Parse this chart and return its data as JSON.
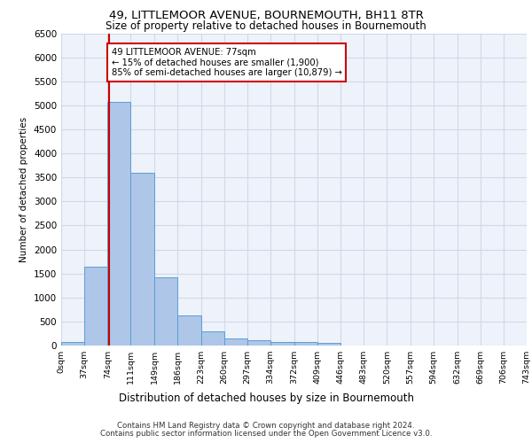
{
  "title_line1": "49, LITTLEMOOR AVENUE, BOURNEMOUTH, BH11 8TR",
  "title_line2": "Size of property relative to detached houses in Bournemouth",
  "xlabel": "Distribution of detached houses by size in Bournemouth",
  "ylabel": "Number of detached properties",
  "footer_line1": "Contains HM Land Registry data © Crown copyright and database right 2024.",
  "footer_line2": "Contains public sector information licensed under the Open Government Licence v3.0.",
  "property_label": "49 LITTLEMOOR AVENUE: 77sqm",
  "annotation_line2": "← 15% of detached houses are smaller (1,900)",
  "annotation_line3": "85% of semi-detached houses are larger (10,879) →",
  "bar_values": [
    75,
    1650,
    5075,
    3600,
    1425,
    625,
    290,
    140,
    110,
    80,
    65,
    55,
    0,
    0,
    0,
    0,
    0,
    0,
    0,
    0
  ],
  "bin_edges": [
    0,
    37,
    74,
    111,
    149,
    186,
    223,
    260,
    297,
    334,
    372,
    409,
    446,
    483,
    520,
    557,
    594,
    632,
    669,
    706,
    743
  ],
  "tick_labels": [
    "0sqm",
    "37sqm",
    "74sqm",
    "111sqm",
    "149sqm",
    "186sqm",
    "223sqm",
    "260sqm",
    "297sqm",
    "334sqm",
    "372sqm",
    "409sqm",
    "446sqm",
    "483sqm",
    "520sqm",
    "557sqm",
    "594sqm",
    "632sqm",
    "669sqm",
    "706sqm",
    "743sqm"
  ],
  "bar_color": "#aec6e8",
  "bar_edge_color": "#5a9fd4",
  "vline_color": "#cc0000",
  "vline_x": 77,
  "annotation_box_color": "#cc0000",
  "grid_color": "#d0d8e8",
  "background_color": "#eef2fa",
  "ylim": [
    0,
    6500
  ],
  "yticks": [
    0,
    500,
    1000,
    1500,
    2000,
    2500,
    3000,
    3500,
    4000,
    4500,
    5000,
    5500,
    6000,
    6500
  ]
}
